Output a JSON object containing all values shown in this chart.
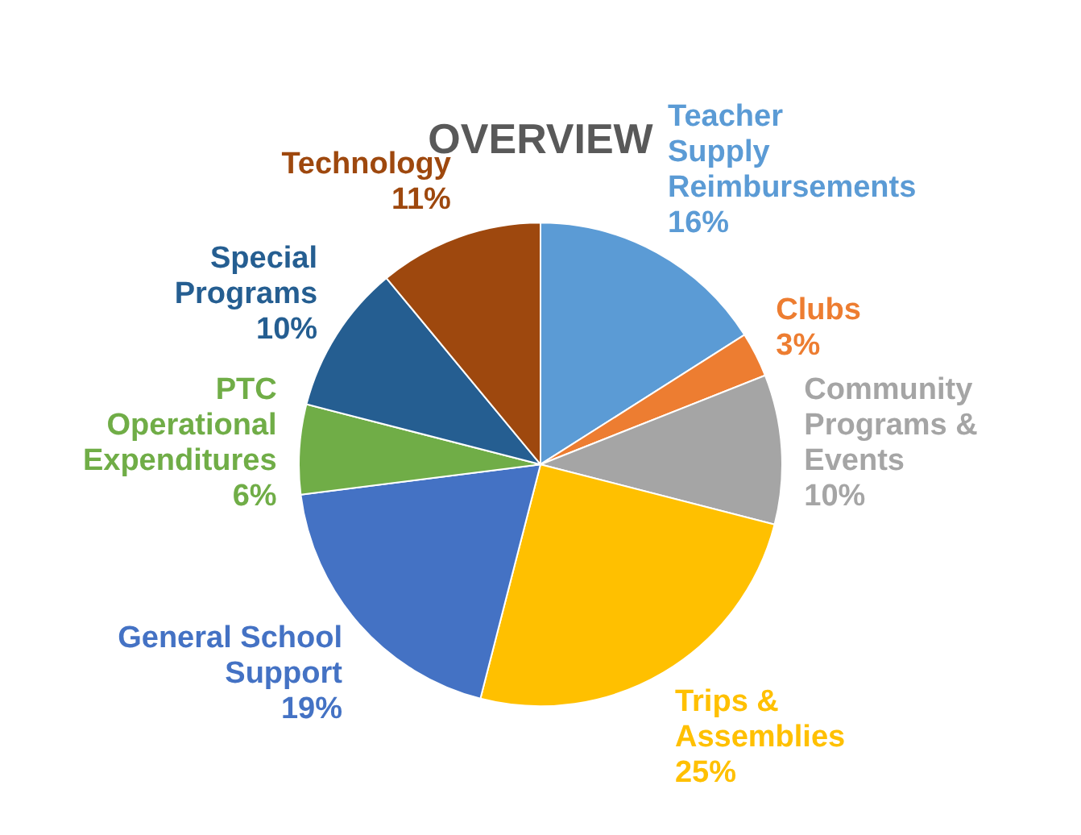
{
  "chart_data": {
    "type": "pie",
    "title": "OVERVIEW",
    "categories": [
      "Teacher Supply Reimbursements",
      "Clubs",
      "Community Programs & Events",
      "Trips & Assemblies",
      "General School Support",
      "PTC Operational Expenditures",
      "Special Programs",
      "Technology"
    ],
    "values": [
      16,
      3,
      10,
      25,
      19,
      6,
      10,
      11
    ],
    "value_labels": [
      "16%",
      "3%",
      "10%",
      "25%",
      "19%",
      "6%",
      "10%",
      "11%"
    ],
    "colors": [
      "#5b9bd5",
      "#ed7d31",
      "#a5a5a5",
      "#ffc000",
      "#4472c4",
      "#70ad47",
      "#255e91",
      "#9e480e"
    ],
    "legend": false
  }
}
